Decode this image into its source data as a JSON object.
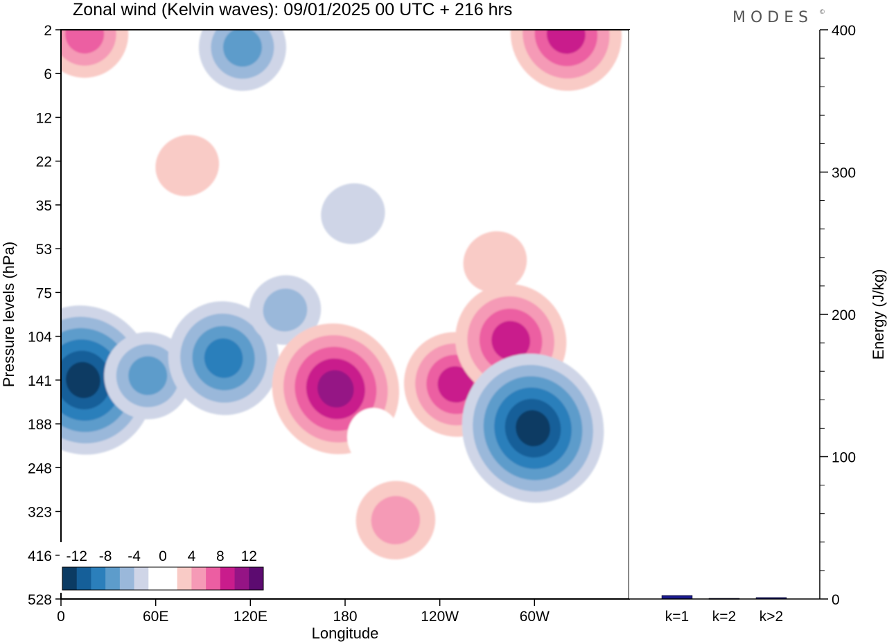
{
  "title": "Zonal wind (Kelvin waves):  09/01/2025  00 UTC  + 216 hrs",
  "logo": "MODES",
  "logo_mark": "©",
  "colors": {
    "neg": [
      "#0b3b63",
      "#155f99",
      "#2b7fbb",
      "#5d9ccb",
      "#9ab8da",
      "#cfd5e7"
    ],
    "zero": "#ffffff",
    "pos": [
      "#f9cbc6",
      "#f59ab6",
      "#ec5ea2",
      "#c91c8c",
      "#951485",
      "#5c0b70"
    ],
    "energy_bar": "#1a1a8c"
  },
  "chart_data": [
    {
      "type": "heatmap",
      "title": "Zonal wind (Kelvin waves):  09/01/2025  00 UTC  + 216 hrs",
      "xlabel": "Longitude",
      "ylabel": "Pressure levels (hPa)",
      "x_ticks": [
        "0",
        "60E",
        "120E",
        "180",
        "120W",
        "60W"
      ],
      "x_tick_values": [
        0,
        60,
        120,
        180,
        240,
        300
      ],
      "xlim": [
        0,
        360
      ],
      "y_ticks": [
        "2",
        "6",
        "12",
        "22",
        "35",
        "53",
        "75",
        "104",
        "141",
        "188",
        "248",
        "323",
        "416",
        "528"
      ],
      "y_axis": "pressure levels, top to bottom",
      "colorbar": {
        "labels": [
          "-12",
          "-8",
          "-4",
          "0",
          "4",
          "8",
          "12"
        ],
        "range": [
          -14,
          14
        ],
        "step": 2
      },
      "features": [
        {
          "lon": 14,
          "level_index": 8.0,
          "value": -13
        },
        {
          "lon": 55,
          "level_index": 7.9,
          "value": -6
        },
        {
          "lon": 103,
          "level_index": 7.5,
          "value": -9
        },
        {
          "lon": 142,
          "level_index": 6.4,
          "value": -4
        },
        {
          "lon": 174,
          "level_index": 8.2,
          "value": 11
        },
        {
          "lon": 250,
          "level_index": 8.1,
          "value": 8
        },
        {
          "lon": 285,
          "level_index": 7.1,
          "value": 9
        },
        {
          "lon": 299,
          "level_index": 9.1,
          "value": -13
        },
        {
          "lon": 212,
          "level_index": 11.2,
          "value": 5
        },
        {
          "lon": 198,
          "level_index": 9.3,
          "value": 0
        },
        {
          "lon": 15,
          "level_index": 0.1,
          "value": 6
        },
        {
          "lon": 320,
          "level_index": 0.1,
          "value": 9
        },
        {
          "lon": 115,
          "level_index": 0.4,
          "value": -6
        },
        {
          "lon": 80,
          "level_index": 3.1,
          "value": 3
        },
        {
          "lon": 185,
          "level_index": 4.2,
          "value": -3
        },
        {
          "lon": 275,
          "level_index": 5.3,
          "value": 3
        }
      ]
    },
    {
      "type": "bar",
      "categories": [
        "k=1",
        "k=2",
        "k>2"
      ],
      "values": [
        2.5,
        0.5,
        1.0
      ],
      "ylabel": "Energy (J/kg)",
      "y_ticks": [
        "0",
        "100",
        "200",
        "300",
        "400"
      ],
      "ylim": [
        0,
        400
      ]
    }
  ]
}
